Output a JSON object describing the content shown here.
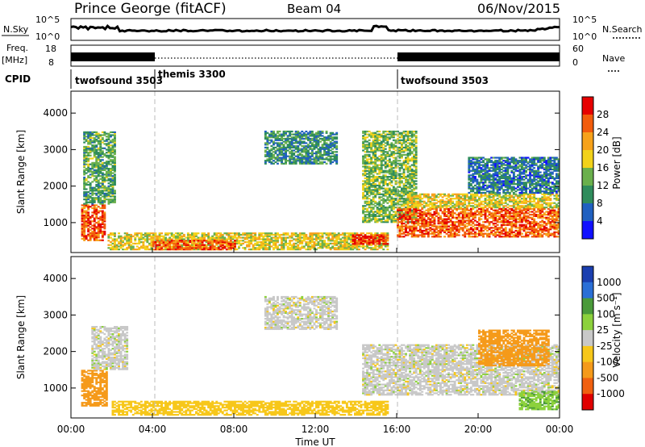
{
  "header": {
    "station": "Prince George (fitACF)",
    "beam": "Beam 04",
    "date": "06/Nov/2015"
  },
  "strip_labels": {
    "nsky": "N.Sky",
    "nsky_top": "10^5",
    "nsky_bottom": "10^0",
    "nsearch": "N.Search",
    "nsearch_top": "10^5",
    "nsearch_bottom": "10^0",
    "freq": "Freq.",
    "freq_unit": "[MHz]",
    "freq_top": "18",
    "freq_bottom": "8",
    "nave": "Nave",
    "nave_top": "60",
    "nave_bottom": "0",
    "cpid": "CPID"
  },
  "cpid_segments": [
    {
      "label": "twofsound 3503",
      "start_hour": 0.0,
      "end_hour": 3.85
    },
    {
      "label": "themis 3300",
      "start_hour": 3.85,
      "end_hour": 16.0
    },
    {
      "label": "twofsound 3503",
      "start_hour": 16.0,
      "end_hour": 24.0
    }
  ],
  "time_axis": {
    "label": "Time UT",
    "ticks": [
      "00:00",
      "04:00",
      "08:00",
      "12:00",
      "16:00",
      "20:00",
      "00:00"
    ],
    "range_hours": [
      0,
      24
    ]
  },
  "range_axis": {
    "label": "Slant Range [km]",
    "ticks": [
      "1000",
      "2000",
      "3000",
      "4000"
    ],
    "range_km": [
      180,
      4600
    ]
  },
  "power_scale": {
    "label": "Power [dB]",
    "ticks": [
      "4",
      "8",
      "12",
      "16",
      "20",
      "24",
      "28"
    ],
    "colors": [
      "#1010ff",
      "#2060c0",
      "#2f8c5c",
      "#6ab04c",
      "#f2d21a",
      "#f7a21a",
      "#f25c0c",
      "#e60000"
    ]
  },
  "velocity_scale": {
    "label": "Velocity [m s⁻¹]",
    "ticks": [
      "1000",
      "500",
      "100",
      "25",
      "-25",
      "-100",
      "-500",
      "-1000"
    ],
    "colors": [
      "#1a3fb0",
      "#2a6fd6",
      "#4a9a3a",
      "#8cd13c",
      "#c8c8c8",
      "#f7c71a",
      "#f59a1a",
      "#f06010",
      "#e00000"
    ]
  },
  "chart_data": {
    "type": "heatmap",
    "title": "Prince George (fitACF)  Beam 04  06/Nov/2015",
    "xlabel": "Time UT",
    "ylabel": "Slant Range [km]",
    "xlim_hours": [
      0,
      24
    ],
    "ylim_km": [
      180,
      4600
    ],
    "panels": [
      {
        "name": "Power [dB]",
        "scale_db": [
          0,
          32
        ],
        "regions": [
          {
            "t0": 0.5,
            "t1": 1.7,
            "r0": 500,
            "r1": 1500,
            "value": 26
          },
          {
            "t0": 0.6,
            "t1": 2.2,
            "r0": 1500,
            "r1": 3500,
            "value": 12
          },
          {
            "t0": 1.8,
            "t1": 15.5,
            "r0": 250,
            "r1": 700,
            "value": 18
          },
          {
            "t0": 4.0,
            "t1": 8.0,
            "r0": 250,
            "r1": 500,
            "value": 26
          },
          {
            "t0": 13.8,
            "t1": 15.5,
            "r0": 400,
            "r1": 650,
            "value": 28
          },
          {
            "t0": 9.5,
            "t1": 13.0,
            "r0": 2600,
            "r1": 3500,
            "value": 10
          },
          {
            "t0": 14.3,
            "t1": 17.0,
            "r0": 1000,
            "r1": 3500,
            "value": 14
          },
          {
            "t0": 16.0,
            "t1": 24.0,
            "r0": 600,
            "r1": 1400,
            "value": 26
          },
          {
            "t0": 16.5,
            "t1": 24.0,
            "r0": 1400,
            "r1": 1800,
            "value": 18
          },
          {
            "t0": 19.5,
            "t1": 24.0,
            "r0": 1800,
            "r1": 2800,
            "value": 8
          }
        ]
      },
      {
        "name": "Velocity [m s⁻¹]",
        "scale_ms": [
          -1000,
          1000
        ],
        "regions": [
          {
            "t0": 0.5,
            "t1": 1.8,
            "r0": 500,
            "r1": 1500,
            "value": -300
          },
          {
            "t0": 1.0,
            "t1": 2.8,
            "r0": 1500,
            "r1": 2700,
            "value": 0
          },
          {
            "t0": 2.0,
            "t1": 15.5,
            "r0": 250,
            "r1": 650,
            "value": -60
          },
          {
            "t0": 9.5,
            "t1": 13.0,
            "r0": 2600,
            "r1": 3500,
            "value": 0
          },
          {
            "t0": 14.3,
            "t1": 24.0,
            "r0": 800,
            "r1": 2200,
            "value": 0
          },
          {
            "t0": 20.0,
            "t1": 23.5,
            "r0": 1600,
            "r1": 2600,
            "value": -200
          },
          {
            "t0": 22.0,
            "t1": 24.0,
            "r0": 400,
            "r1": 900,
            "value": 80
          }
        ]
      }
    ]
  }
}
